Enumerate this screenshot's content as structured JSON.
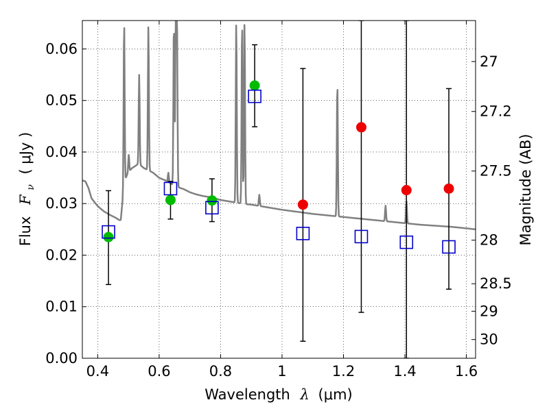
{
  "chart_data": {
    "type": "scatter",
    "x_axis": {
      "range": [
        0.35,
        1.63
      ],
      "ticks": [
        0.4,
        0.6,
        0.8,
        1.0,
        1.2,
        1.4,
        1.6
      ],
      "tick_labels": [
        "0.4",
        "0.6",
        "0.8",
        "1",
        "1.2",
        "1.4",
        "1.6"
      ],
      "label_prefix": "Wavelength",
      "label_symbol": "λ",
      "label_unit": "(μm)"
    },
    "y_axis": {
      "range": [
        0.0,
        0.0655
      ],
      "ticks": [
        0.0,
        0.01,
        0.02,
        0.03,
        0.04,
        0.05,
        0.06
      ],
      "tick_labels": [
        "0.00",
        "0.01",
        "0.02",
        "0.03",
        "0.04",
        "0.05",
        "0.06"
      ],
      "label_prefix": "Flux",
      "label_symbol": "F",
      "label_subscript": "ν",
      "label_unit": "( μJy )"
    },
    "y2_axis": {
      "label": "Magnitude (AB)",
      "ticks": [
        27,
        27.2,
        27.5,
        28,
        28.5,
        29,
        30
      ],
      "tick_labels": [
        "27",
        "27.2",
        "27.5",
        "28",
        "28.5",
        "29",
        "30"
      ]
    },
    "grid": true,
    "colors": {
      "model": "#808080",
      "observed_green": "#00bb00",
      "observed_red": "#ee0000",
      "model_band": "#0000cc",
      "errorbar": "#000000"
    },
    "model_spectrum": {
      "x": [
        0.35,
        0.36,
        0.37,
        0.38,
        0.4,
        0.42,
        0.44,
        0.46,
        0.47,
        0.475,
        0.48,
        0.485,
        0.487,
        0.49,
        0.495,
        0.5,
        0.51,
        0.52,
        0.53,
        0.54,
        0.55,
        0.56,
        0.58,
        0.6,
        0.62,
        0.64,
        0.66,
        0.68,
        0.7,
        0.72,
        0.74,
        0.76,
        0.78,
        0.8,
        0.82,
        0.84,
        0.86,
        0.88,
        0.9,
        0.92,
        0.94,
        0.96,
        0.98,
        1.0,
        1.05,
        1.1,
        1.15,
        1.2,
        1.25,
        1.3,
        1.35,
        1.4,
        1.45,
        1.5,
        1.55,
        1.6,
        1.63
      ],
      "y": [
        0.0345,
        0.0343,
        0.033,
        0.031,
        0.0295,
        0.0285,
        0.0278,
        0.0272,
        0.0268,
        0.0268,
        0.03,
        0.033,
        0.034,
        0.0347,
        0.0355,
        0.036,
        0.0368,
        0.0372,
        0.0376,
        0.0374,
        0.0369,
        0.0366,
        0.036,
        0.035,
        0.0345,
        0.0338,
        0.0332,
        0.0328,
        0.0322,
        0.0318,
        0.0315,
        0.0313,
        0.031,
        0.0307,
        0.0305,
        0.0303,
        0.0301,
        0.0299,
        0.0298,
        0.0296,
        0.0294,
        0.0292,
        0.029,
        0.0288,
        0.0284,
        0.028,
        0.0277,
        0.0274,
        0.0271,
        0.0268,
        0.0265,
        0.0262,
        0.0259,
        0.0257,
        0.0255,
        0.0252,
        0.025
      ],
      "emission_lines": [
        {
          "x": 0.486,
          "peak": 0.0655
        },
        {
          "x": 0.501,
          "peak": 0.0395
        },
        {
          "x": 0.535,
          "peak": 0.055
        },
        {
          "x": 0.565,
          "peak": 0.0645
        },
        {
          "x": 0.63,
          "peak": 0.036
        },
        {
          "x": 0.648,
          "peak": 0.0655
        },
        {
          "x": 0.654,
          "peak": 0.0655
        },
        {
          "x": 0.658,
          "peak": 0.0655
        },
        {
          "x": 0.851,
          "peak": 0.0655
        },
        {
          "x": 0.87,
          "peak": 0.0655
        },
        {
          "x": 0.878,
          "peak": 0.0655
        },
        {
          "x": 0.926,
          "peak": 0.0317
        },
        {
          "x": 1.18,
          "peak": 0.0537
        },
        {
          "x": 1.337,
          "peak": 0.0296
        },
        {
          "x": 1.405,
          "peak": 0.0305
        }
      ]
    },
    "observed_points": [
      {
        "x": 0.435,
        "y": 0.0235,
        "yerr_low": 0.0143,
        "yerr_high": 0.0325,
        "color": "green"
      },
      {
        "x": 0.637,
        "y": 0.0307,
        "yerr_low": 0.027,
        "yerr_high": 0.0343,
        "color": "green"
      },
      {
        "x": 0.772,
        "y": 0.0306,
        "yerr_low": 0.0265,
        "yerr_high": 0.0348,
        "color": "green"
      },
      {
        "x": 0.911,
        "y": 0.0529,
        "yerr_low": 0.0449,
        "yerr_high": 0.0608,
        "color": "green"
      },
      {
        "x": 1.068,
        "y": 0.0298,
        "yerr_low": 0.0033,
        "yerr_high": 0.0562,
        "color": "red"
      },
      {
        "x": 1.258,
        "y": 0.0448,
        "yerr_low": 0.0089,
        "yerr_high": 0.0655,
        "color": "red"
      },
      {
        "x": 1.405,
        "y": 0.0326,
        "yerr_low": 0.0,
        "yerr_high": 0.0655,
        "color": "red"
      },
      {
        "x": 1.543,
        "y": 0.0329,
        "yerr_low": 0.0134,
        "yerr_high": 0.0523,
        "color": "red"
      }
    ],
    "model_band_fluxes": [
      {
        "x": 0.435,
        "y": 0.0245
      },
      {
        "x": 0.637,
        "y": 0.0329
      },
      {
        "x": 0.772,
        "y": 0.0292
      },
      {
        "x": 0.911,
        "y": 0.0508
      },
      {
        "x": 1.068,
        "y": 0.0242
      },
      {
        "x": 1.258,
        "y": 0.0236
      },
      {
        "x": 1.405,
        "y": 0.0225
      },
      {
        "x": 1.543,
        "y": 0.0216
      }
    ]
  }
}
